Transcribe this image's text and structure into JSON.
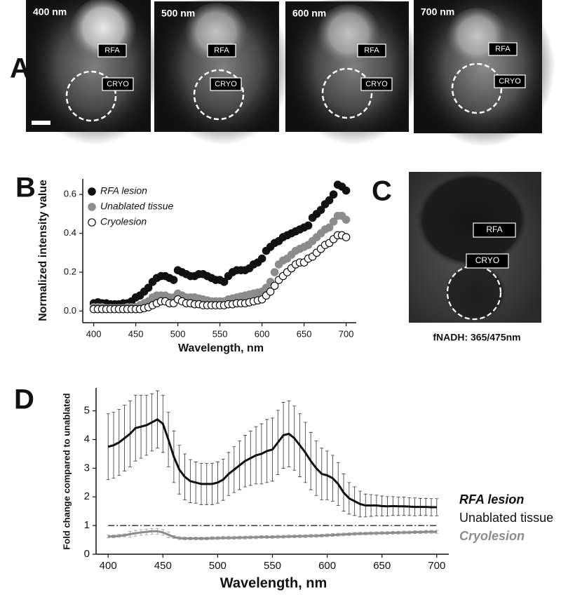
{
  "panel_labels": [
    "A",
    "B",
    "C",
    "D"
  ],
  "panel_a": {
    "images": [
      {
        "label": "400 nm",
        "rfa": "RFA",
        "cryo": "CRYO"
      },
      {
        "label": "500 nm",
        "rfa": "RFA",
        "cryo": "CRYO"
      },
      {
        "label": "600 nm",
        "rfa": "RFA",
        "cryo": "CRYO"
      },
      {
        "label": "700 nm",
        "rfa": "RFA",
        "cryo": "CRYO"
      }
    ]
  },
  "panel_c": {
    "rfa": "RFA",
    "cryo": "CRYO",
    "caption": "fNADH: 365/475nm"
  },
  "chart_data": [
    {
      "type": "scatter",
      "x_label": "Wavelength, nm",
      "y_label": "Normalized intensity value",
      "x": [
        400,
        405,
        410,
        415,
        420,
        425,
        430,
        435,
        440,
        445,
        450,
        455,
        460,
        465,
        470,
        475,
        480,
        485,
        490,
        495,
        500,
        505,
        510,
        515,
        520,
        525,
        530,
        535,
        540,
        545,
        550,
        555,
        560,
        565,
        570,
        575,
        580,
        585,
        590,
        595,
        600,
        605,
        610,
        615,
        620,
        625,
        630,
        635,
        640,
        645,
        650,
        655,
        660,
        665,
        670,
        675,
        680,
        685,
        690,
        695,
        700
      ],
      "series": [
        {
          "name": "RFA lesion",
          "color": "#111111",
          "marker": "filled",
          "values": [
            0.04,
            0.045,
            0.04,
            0.04,
            0.035,
            0.035,
            0.035,
            0.04,
            0.04,
            0.05,
            0.07,
            0.08,
            0.1,
            0.12,
            0.15,
            0.17,
            0.18,
            0.18,
            0.17,
            0.16,
            0.21,
            0.2,
            0.19,
            0.18,
            0.18,
            0.19,
            0.19,
            0.18,
            0.17,
            0.16,
            0.16,
            0.15,
            0.18,
            0.2,
            0.21,
            0.21,
            0.21,
            0.22,
            0.24,
            0.25,
            0.27,
            0.31,
            0.33,
            0.35,
            0.36,
            0.38,
            0.39,
            0.4,
            0.41,
            0.42,
            0.43,
            0.44,
            0.48,
            0.5,
            0.52,
            0.55,
            0.57,
            0.6,
            0.65,
            0.64,
            0.62
          ]
        },
        {
          "name": "Unablated tissue",
          "color": "#8c8c8c",
          "marker": "filled",
          "values": [
            0.02,
            0.02,
            0.02,
            0.015,
            0.015,
            0.015,
            0.015,
            0.015,
            0.02,
            0.02,
            0.02,
            0.03,
            0.04,
            0.05,
            0.07,
            0.08,
            0.08,
            0.08,
            0.07,
            0.07,
            0.09,
            0.08,
            0.07,
            0.07,
            0.07,
            0.065,
            0.06,
            0.055,
            0.05,
            0.05,
            0.05,
            0.05,
            0.06,
            0.065,
            0.07,
            0.075,
            0.08,
            0.085,
            0.09,
            0.095,
            0.1,
            0.12,
            0.15,
            0.2,
            0.24,
            0.26,
            0.27,
            0.29,
            0.31,
            0.32,
            0.33,
            0.34,
            0.36,
            0.38,
            0.4,
            0.42,
            0.43,
            0.46,
            0.49,
            0.49,
            0.47
          ]
        },
        {
          "name": "Cryolesion",
          "color": "#111111",
          "marker": "open",
          "values": [
            0.01,
            0.01,
            0.01,
            0.01,
            0.01,
            0.01,
            0.01,
            0.01,
            0.01,
            0.01,
            0.01,
            0.01,
            0.015,
            0.02,
            0.03,
            0.04,
            0.05,
            0.05,
            0.04,
            0.04,
            0.06,
            0.05,
            0.04,
            0.04,
            0.035,
            0.035,
            0.03,
            0.03,
            0.03,
            0.03,
            0.03,
            0.03,
            0.035,
            0.035,
            0.04,
            0.04,
            0.04,
            0.045,
            0.05,
            0.055,
            0.06,
            0.08,
            0.1,
            0.13,
            0.16,
            0.18,
            0.2,
            0.22,
            0.24,
            0.25,
            0.25,
            0.27,
            0.28,
            0.3,
            0.32,
            0.34,
            0.35,
            0.37,
            0.39,
            0.39,
            0.38
          ]
        }
      ],
      "xlim": [
        387,
        712
      ],
      "ylim": [
        -0.06,
        0.68
      ],
      "xticks": [
        400,
        450,
        500,
        550,
        600,
        650,
        700
      ],
      "yticks": [
        {
          "value": 0,
          "label": "0.0"
        },
        0.2,
        0.4,
        0.6
      ],
      "legend": "upper left"
    },
    {
      "type": "line",
      "x_label": "Wavelength, nm",
      "y_label": "Fold change compared to unablated",
      "x": [
        400,
        405,
        410,
        415,
        420,
        425,
        430,
        435,
        440,
        445,
        450,
        455,
        460,
        465,
        470,
        475,
        480,
        485,
        490,
        495,
        500,
        505,
        510,
        515,
        520,
        525,
        530,
        535,
        540,
        545,
        550,
        555,
        560,
        565,
        570,
        575,
        580,
        585,
        590,
        595,
        600,
        605,
        610,
        615,
        620,
        625,
        630,
        635,
        640,
        645,
        650,
        655,
        660,
        665,
        670,
        675,
        680,
        685,
        690,
        695,
        700
      ],
      "series": [
        {
          "name": "RFA lesion",
          "color": "#111111",
          "style": "solid",
          "values": [
            3.75,
            3.8,
            3.9,
            4.05,
            4.2,
            4.4,
            4.45,
            4.5,
            4.6,
            4.7,
            4.55,
            4.0,
            3.4,
            2.95,
            2.7,
            2.55,
            2.5,
            2.45,
            2.45,
            2.45,
            2.5,
            2.6,
            2.8,
            2.95,
            3.1,
            3.25,
            3.35,
            3.45,
            3.5,
            3.6,
            3.65,
            3.9,
            4.15,
            4.2,
            4.05,
            3.8,
            3.55,
            3.25,
            3.0,
            2.8,
            2.75,
            2.65,
            2.45,
            2.15,
            1.95,
            1.85,
            1.75,
            1.7,
            1.7,
            1.7,
            1.68,
            1.67,
            1.68,
            1.67,
            1.67,
            1.66,
            1.65,
            1.65,
            1.65,
            1.64,
            1.64
          ],
          "errors": [
            1.15,
            1.15,
            1.15,
            1.15,
            1.15,
            1.15,
            1.1,
            1.05,
            1.0,
            1.0,
            1.0,
            0.95,
            0.9,
            0.85,
            0.8,
            0.75,
            0.72,
            0.72,
            0.72,
            0.72,
            0.72,
            0.72,
            0.75,
            0.8,
            0.85,
            0.9,
            0.95,
            1.0,
            1.05,
            1.1,
            1.1,
            1.12,
            1.15,
            1.15,
            1.12,
            1.1,
            1.05,
            1.0,
            0.95,
            0.9,
            0.85,
            0.8,
            0.75,
            0.65,
            0.55,
            0.5,
            0.45,
            0.4,
            0.38,
            0.36,
            0.35,
            0.34,
            0.33,
            0.32,
            0.32,
            0.31,
            0.31,
            0.3,
            0.3,
            0.3,
            0.3
          ]
        },
        {
          "name": "Unablated tissue",
          "color": "#111111",
          "style": "dashdot",
          "values": [
            1,
            1,
            1,
            1,
            1,
            1,
            1,
            1,
            1,
            1,
            1,
            1,
            1,
            1,
            1,
            1,
            1,
            1,
            1,
            1,
            1,
            1,
            1,
            1,
            1,
            1,
            1,
            1,
            1,
            1,
            1,
            1,
            1,
            1,
            1,
            1,
            1,
            1,
            1,
            1,
            1,
            1,
            1,
            1,
            1,
            1,
            1,
            1,
            1,
            1,
            1,
            1,
            1,
            1,
            1,
            1,
            1,
            1,
            1,
            1,
            1
          ]
        },
        {
          "name": "Cryolesion",
          "color": "#8c8c8c",
          "style": "solid",
          "values": [
            0.62,
            0.62,
            0.64,
            0.66,
            0.7,
            0.73,
            0.76,
            0.78,
            0.8,
            0.8,
            0.76,
            0.68,
            0.6,
            0.56,
            0.55,
            0.55,
            0.55,
            0.55,
            0.55,
            0.56,
            0.56,
            0.57,
            0.57,
            0.57,
            0.58,
            0.58,
            0.59,
            0.59,
            0.6,
            0.6,
            0.6,
            0.61,
            0.61,
            0.62,
            0.62,
            0.63,
            0.63,
            0.64,
            0.64,
            0.65,
            0.66,
            0.67,
            0.68,
            0.69,
            0.7,
            0.71,
            0.72,
            0.72,
            0.73,
            0.73,
            0.74,
            0.74,
            0.75,
            0.75,
            0.76,
            0.76,
            0.77,
            0.77,
            0.78,
            0.78,
            0.78
          ],
          "errors": [
            0.05,
            0.05,
            0.05,
            0.05,
            0.1,
            0.1,
            0.1,
            0.1,
            0.1,
            0.1,
            0.1,
            0.1,
            0.05,
            0.05,
            0.05,
            0.05,
            0.05,
            0.05,
            0.05,
            0.05,
            0.05,
            0.05,
            0.05,
            0.05,
            0.05,
            0.05,
            0.05,
            0.05,
            0.05,
            0.05,
            0.05,
            0.05,
            0.05,
            0.05,
            0.05,
            0.05,
            0.05,
            0.05,
            0.05,
            0.05,
            0.05,
            0.05,
            0.05,
            0.05,
            0.05,
            0.05,
            0.05,
            0.05,
            0.05,
            0.05,
            0.05,
            0.05,
            0.05,
            0.05,
            0.05,
            0.05,
            0.05,
            0.05,
            0.05,
            0.05,
            0.05
          ]
        }
      ],
      "xlim": [
        389,
        711
      ],
      "ylim": [
        0,
        5.8
      ],
      "xticks": [
        400,
        450,
        500,
        550,
        600,
        650,
        700
      ],
      "yticks": [
        0,
        1,
        2,
        3,
        4,
        5
      ],
      "legend": "right"
    }
  ]
}
